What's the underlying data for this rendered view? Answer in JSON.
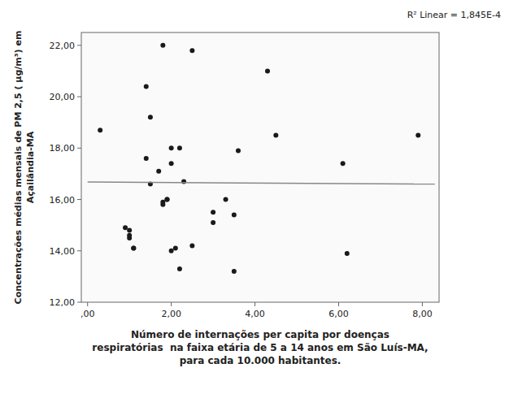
{
  "chart_data": {
    "type": "scatter",
    "annotation": "R² Linear = 1,845E-4",
    "xlabel": [
      "Número de internações per capita por doenças",
      "respiratórias  na faixa etária de 5 a 14 anos em São Luís-MA,",
      "para cada 10.000 habitantes."
    ],
    "ylabel": [
      "Concentrações médias mensais de PM 2,5 ( μg/m³) em",
      "Açailândia-MA"
    ],
    "series": [
      {
        "type": "scatter",
        "color": "#1a1a1a",
        "x": [
          0.3,
          0.9,
          1.0,
          1.0,
          1.0,
          1.1,
          1.1,
          1.4,
          1.4,
          1.5,
          1.5,
          1.7,
          1.8,
          1.8,
          1.8,
          1.9,
          1.9,
          2.0,
          2.0,
          2.0,
          2.1,
          2.2,
          2.2,
          2.3,
          2.5,
          2.5,
          3.0,
          3.0,
          3.3,
          3.5,
          3.5,
          3.6,
          4.3,
          4.5,
          6.1,
          6.2,
          7.9
        ],
        "values": [
          18.7,
          14.9,
          14.8,
          14.6,
          14.5,
          14.1,
          14.1,
          20.4,
          17.6,
          19.2,
          16.6,
          17.1,
          22.0,
          15.9,
          15.8,
          16.0,
          16.0,
          18.0,
          17.4,
          14.0,
          14.1,
          18.0,
          13.3,
          16.7,
          21.8,
          14.2,
          15.5,
          15.1,
          16.0,
          15.4,
          13.2,
          17.9,
          21.0,
          18.5,
          17.4,
          13.9,
          18.5
        ]
      },
      {
        "type": "line",
        "color": "#888888",
        "x": [
          0.0,
          8.3
        ],
        "values": [
          16.68,
          16.6
        ]
      }
    ],
    "xlim": [
      -0.15,
      8.4
    ],
    "ylim": [
      12.0,
      22.5
    ],
    "xticks": [
      {
        "value": 0.0,
        "label": ",00"
      },
      {
        "value": 2.0,
        "label": "2,00"
      },
      {
        "value": 4.0,
        "label": "4,00"
      },
      {
        "value": 6.0,
        "label": "6,00"
      },
      {
        "value": 8.0,
        "label": "8,00"
      }
    ],
    "yticks": [
      {
        "value": 12.0,
        "label": "12,00"
      },
      {
        "value": 14.0,
        "label": "14,00"
      },
      {
        "value": 16.0,
        "label": "16,00"
      },
      {
        "value": 18.0,
        "label": "18,00"
      },
      {
        "value": 20.0,
        "label": "20,00"
      },
      {
        "value": 22.0,
        "label": "22,00"
      }
    ],
    "grid": false
  }
}
